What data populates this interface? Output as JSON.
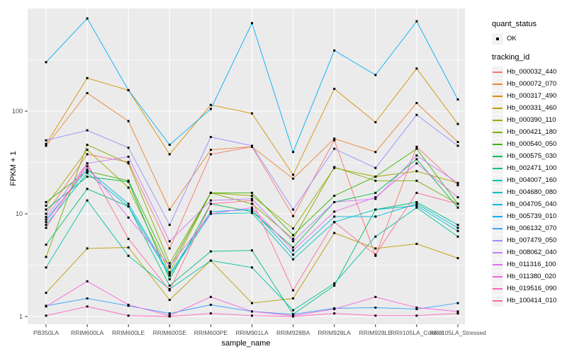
{
  "chart": {
    "y_axis_title": "FPKM + 1",
    "x_axis_title": "sample_name",
    "legend": {
      "quant_status_title": "quant_status",
      "quant_status_items": [
        {
          "label": "OK",
          "symbol": "black-point"
        }
      ],
      "tracking_id_title": "tracking_id"
    },
    "colors": {
      "panel_bg": "#EBEBEB",
      "grid": "#FFFFFF",
      "axis_text": "#4D4D4D",
      "tick_mark": "#333333",
      "marker": "#000000",
      "legend_key_bg": "#F2F2F2"
    }
  },
  "chart_data": {
    "type": "line",
    "title": "",
    "xlabel": "sample_name",
    "ylabel": "FPKM + 1",
    "y_scale": "log10",
    "y_ticks": [
      1,
      10,
      100
    ],
    "y_minor_ticks": [
      3.16,
      31.6,
      316
    ],
    "ylim": [
      1,
      1000
    ],
    "grid": "on",
    "legend_position": "right",
    "point_marker": "black square",
    "categories": [
      "PB350LA",
      "RRIM600LA",
      "RRIM600LE",
      "RRIM600SE",
      "RRIM600PE",
      "RRIM901LA",
      "RRIM928BA",
      "RRIM928LA",
      "RRIM928LE",
      "RRII105LA_Control",
      "RRII105LA_Stressed"
    ],
    "series": [
      {
        "name": "Hb_000032_440",
        "color": "#F8766D",
        "values": [
          10,
          38,
          32,
          4.6,
          38,
          45,
          9.5,
          52,
          3.9,
          45,
          19
        ]
      },
      {
        "name": "Hb_000072_070",
        "color": "#EA8331",
        "values": [
          46,
          150,
          80,
          11,
          42,
          45,
          22,
          54,
          40,
          120,
          50
        ]
      },
      {
        "name": "Hb_000317_490",
        "color": "#D89000",
        "values": [
          48,
          210,
          160,
          38,
          115,
          95,
          24,
          165,
          78,
          260,
          75
        ]
      },
      {
        "name": "Hb_000331_460",
        "color": "#C09B00",
        "values": [
          1.7,
          4.6,
          4.7,
          1.45,
          3.5,
          1.35,
          1.5,
          6.5,
          4.6,
          5.1,
          3.7
        ]
      },
      {
        "name": "Hb_000390_110",
        "color": "#A3A500",
        "values": [
          12,
          42,
          18,
          2.7,
          16,
          15,
          7.2,
          28,
          23,
          26,
          20
        ]
      },
      {
        "name": "Hb_000421_180",
        "color": "#7CAE00",
        "values": [
          3.8,
          47,
          31,
          3.3,
          16,
          12.5,
          5.7,
          28.5,
          21,
          21,
          12.5
        ]
      },
      {
        "name": "Hb_000540_050",
        "color": "#39B600",
        "values": [
          13,
          26,
          21,
          3.0,
          16,
          16,
          6.2,
          15,
          23,
          43,
          12.5
        ]
      },
      {
        "name": "Hb_000575_030",
        "color": "#00BB4E",
        "values": [
          11,
          23,
          20.5,
          2.3,
          12.5,
          10.5,
          4.7,
          13,
          16,
          34,
          11.5
        ]
      },
      {
        "name": "Hb_002471_100",
        "color": "#00BF7D",
        "values": [
          5.0,
          17.5,
          11.8,
          2.0,
          4.3,
          4.4,
          1.05,
          2.0,
          11,
          13,
          7.8
        ]
      },
      {
        "name": "Hb_004007_160",
        "color": "#00C1A3",
        "values": [
          3.0,
          13.5,
          3.9,
          1.85,
          3.5,
          3.0,
          1.15,
          2.1,
          6.0,
          11.5,
          6.0
        ]
      },
      {
        "name": "Hb_004680_080",
        "color": "#00BFC4",
        "values": [
          7.8,
          25,
          11.8,
          2.5,
          10,
          10.2,
          3.6,
          8.3,
          11,
          12,
          6.8
        ]
      },
      {
        "name": "Hb_004705_040",
        "color": "#00BAE0",
        "values": [
          8.8,
          27,
          12.5,
          2.6,
          10.5,
          11,
          4.0,
          9.4,
          9.4,
          12.5,
          7.3
        ]
      },
      {
        "name": "Hb_005739_010",
        "color": "#00B0F6",
        "values": [
          300,
          800,
          160,
          47,
          105,
          720,
          40,
          390,
          225,
          750,
          130
        ]
      },
      {
        "name": "Hb_006132_070",
        "color": "#35A2FF",
        "values": [
          1.27,
          1.5,
          1.27,
          1.07,
          1.3,
          1.12,
          1.05,
          1.2,
          1.22,
          1.18,
          1.35
        ]
      },
      {
        "name": "Hb_007479_050",
        "color": "#9590FF",
        "values": [
          52,
          65,
          44,
          7.8,
          56,
          46,
          11,
          43,
          28,
          92,
          46
        ]
      },
      {
        "name": "Hb_008062_040",
        "color": "#C77CFF",
        "values": [
          9.3,
          31,
          36,
          5.4,
          13.5,
          14,
          5.4,
          13,
          14,
          37,
          20
        ]
      },
      {
        "name": "Hb_011316_100",
        "color": "#E76BF3",
        "values": [
          8.3,
          29,
          9.2,
          3.1,
          10,
          11.5,
          4.4,
          10.5,
          14.5,
          31,
          14.5
        ]
      },
      {
        "name": "Hb_011380_020",
        "color": "#FA62DB",
        "values": [
          1.25,
          2.2,
          1.3,
          1.02,
          1.55,
          1.12,
          1.02,
          1.18,
          1.55,
          1.22,
          1.12
        ]
      },
      {
        "name": "Hb_019516_090",
        "color": "#FF62BC",
        "values": [
          1.02,
          1.25,
          1.02,
          1.0,
          1.07,
          1.02,
          1.0,
          1.07,
          1.02,
          1.02,
          1.07
        ]
      },
      {
        "name": "Hb_100414_010",
        "color": "#FF6A98",
        "values": [
          7.3,
          31,
          5.7,
          1.8,
          12.5,
          13.5,
          1.8,
          8.3,
          4.0,
          16,
          12.5
        ]
      }
    ]
  }
}
